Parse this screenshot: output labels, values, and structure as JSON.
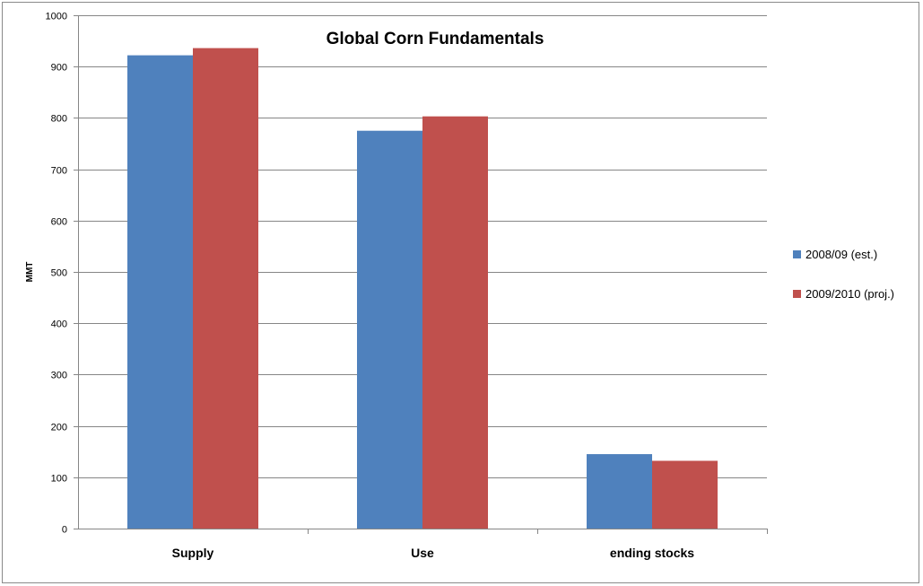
{
  "chart_data": {
    "type": "bar",
    "title": "Global Corn Fundamentals",
    "xlabel": "",
    "ylabel": "MMT",
    "categories": [
      "Supply",
      "Use",
      "ending stocks"
    ],
    "series": [
      {
        "name": "2008/09 (est.)",
        "values": [
          922,
          775,
          145
        ],
        "color": "#4F81BD"
      },
      {
        "name": "2009/2010 (proj.)",
        "values": [
          936,
          803,
          132
        ],
        "color": "#C0504D"
      }
    ],
    "ylim": [
      0,
      1000
    ],
    "yticks": [
      0,
      100,
      200,
      300,
      400,
      500,
      600,
      700,
      800,
      900,
      1000
    ],
    "grid": true,
    "legend_position": "right"
  }
}
